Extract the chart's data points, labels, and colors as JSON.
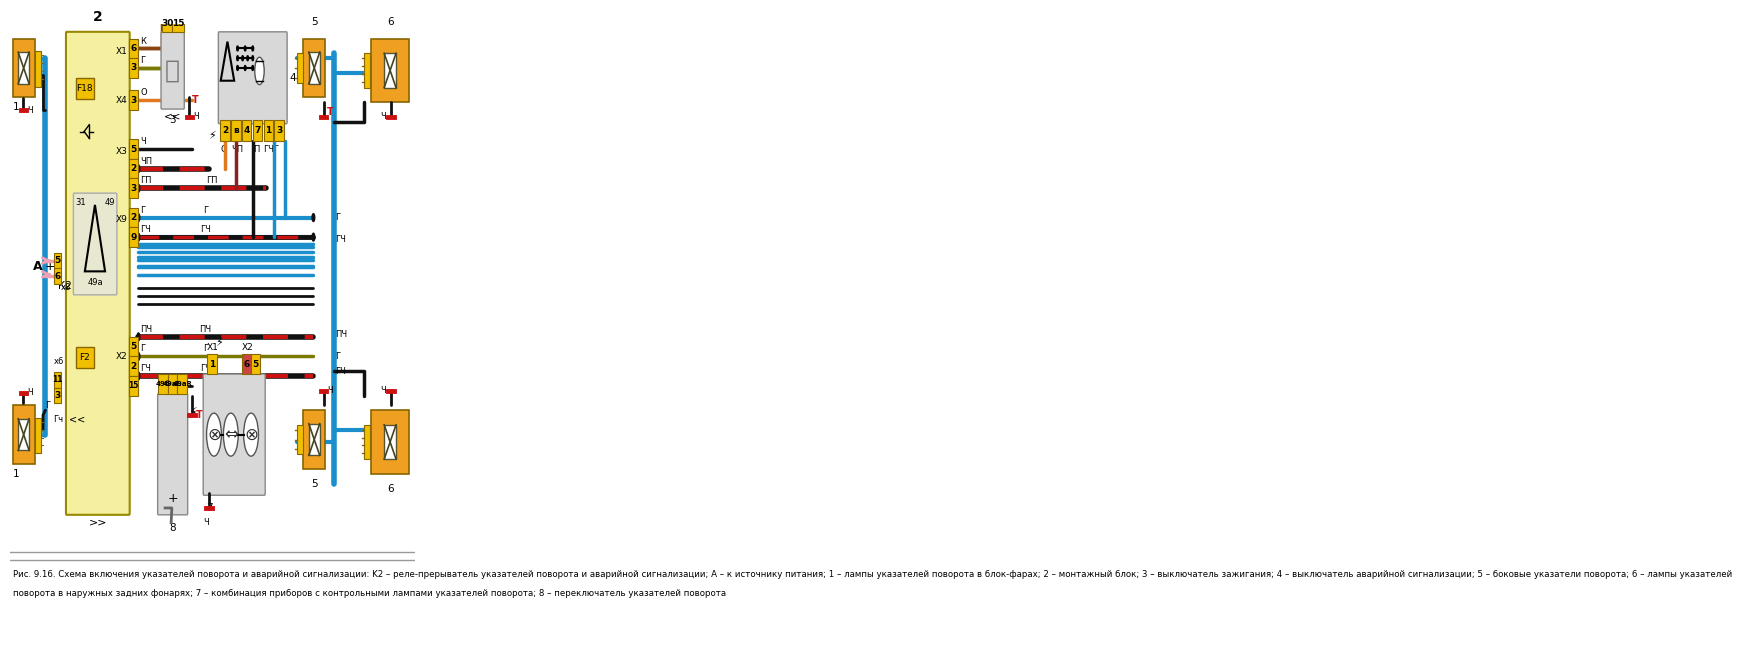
{
  "bg_color": "#ffffff",
  "figure_width": 12.0,
  "figure_height": 6.28,
  "caption_line1": "Рис. 9.16. Схема включения указателей поворота и аварийной сигнализации: K2 – реле-прерыватель указателей поворота и аварийной сигнализации; А – к источнику питания; 1 – лампы указателей поворота в блок-фарах; 2 – монтажный блок; 3 – выключатель зажигания; 4 – выключатель аварийной сигнализации; 5 – боковые указатели поворота; 6 – лампы указателей",
  "caption_line2": "поворота в наружных задних фонарях; 7 – комбинация приборов с контрольными лампами указателей поворота; 8 – переключатель указателей поворота",
  "lamp_color": "#f0a020",
  "wire_blue": "#1a8fcc",
  "wire_black": "#111111",
  "wire_orange": "#e07820",
  "wire_red": "#cc1111",
  "wire_pink": "#f0a0b0",
  "wire_olive": "#7a7a00",
  "wire_checkered_r": "#cc1111",
  "wire_checkered_b": "#111111"
}
